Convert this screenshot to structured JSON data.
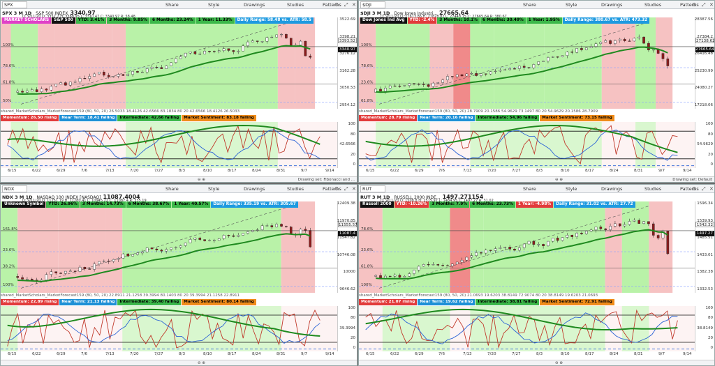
{
  "panels": [
    {
      "id": "spx",
      "symbol": "SPX",
      "title": "SPX 3 M 1D",
      "name": "S&P 500 INDEX",
      "last": "3340.97",
      "ohlc": "D: 9/11/20   O: 3352.7   H: 3368.95   L: 3310.47   C: 3340.97   R: 58.48",
      "badges": [
        {
          "text": "MARKET SCHOLARS",
          "cls": "b-mag"
        },
        {
          "text": "S&P 500",
          "cls": "b-name2"
        },
        {
          "text": "YTD: 3.41%",
          "cls": "b-green"
        },
        {
          "text": "3 Months: 9.85%",
          "cls": "b-green"
        },
        {
          "text": "6 Months: 23.24%",
          "cls": "b-green"
        },
        {
          "text": "1 Year: 11.33%",
          "cls": "b-green"
        },
        {
          "text": "Daily Range: 58.48 vs. ATR: 58.5",
          "cls": "b-range"
        }
      ],
      "axis": [
        "3522.69",
        "3398.21",
        "3276.12",
        "3162.28",
        "3050.53",
        "2954.12"
      ],
      "price_tag": "3340.97",
      "price_tag2": "3393.52",
      "fib": [
        "100%",
        "78.6%",
        "61.8%",
        "50%"
      ],
      "forecast": "shared_MarketScholars_MarketForecast159 (80, 50, 20)   26.5033   18.4126   42.6566   83.1834   80   20   42.6566   18.4126   26.5033",
      "osc": [
        {
          "text": "Momentum: 26.50  rising",
          "cls": "ob-red"
        },
        {
          "text": "Near Term: 18.41  falling",
          "cls": "ob-blue"
        },
        {
          "text": "Intermediate: 42.66  falling",
          "cls": "ob-green"
        },
        {
          "text": "Market Sentiment: 83.18  falling",
          "cls": "ob-orange"
        }
      ],
      "osc_axis": [
        "100",
        "80",
        "42.6566",
        "20",
        "0"
      ],
      "dates": [
        "6/15",
        "6/22",
        "6/29",
        "7/6",
        "7/13",
        "7/20",
        "7/27",
        "8/3",
        "8/10",
        "8/17",
        "8/24",
        "8/31",
        "9/7",
        "9/14"
      ],
      "bottom": "Drawing set: Fibonacci and ..."
    },
    {
      "id": "dji",
      "symbol": "$DJI",
      "title": "$DJI 3 M 1D",
      "name": "Dow Jones Industri...",
      "last": "27665.64",
      "ohlc": "D: 9/11/20   O: 27613.86   H: 27828.82   L: 27448.15   C: 27665.64   R: 380.67",
      "badges": [
        {
          "text": "Dow Jones Ind Avg",
          "cls": "b-name2"
        },
        {
          "text": "YTD: -2.4%",
          "cls": "b-red"
        },
        {
          "text": "3 Months: 10.1%",
          "cls": "b-green"
        },
        {
          "text": "6 Months: 30.49%",
          "cls": "b-green"
        },
        {
          "text": "1 Year: 1.95%",
          "cls": "b-green"
        },
        {
          "text": "Daily Range: 380.67 vs. ATR: 473.32",
          "cls": "b-range"
        }
      ],
      "axis": [
        "28387.56",
        "27384.2",
        "26416.48",
        "25230.99",
        "24080.27",
        "17218.06"
      ],
      "price_tag": "27665.64",
      "price_tag2": "27138.62",
      "fib": [
        "100%",
        "78.6%",
        "23.6%",
        "61.8%"
      ],
      "forecast": "shared_MarketScholars_MarketForecast159 (80, 50, 20)   28.7909   20.1586   54.9629   73.1497   80   20   54.9629   20.1586   28.7909",
      "osc": [
        {
          "text": "Momentum: 28.79  rising",
          "cls": "ob-red"
        },
        {
          "text": "Near Term: 20.16  falling",
          "cls": "ob-blue"
        },
        {
          "text": "Intermediate: 54.96  falling",
          "cls": "ob-green"
        },
        {
          "text": "Market Sentiment: 73.15  falling",
          "cls": "ob-orange"
        }
      ],
      "osc_axis": [
        "100",
        "80",
        "54.9629",
        "20",
        "0"
      ],
      "dates": [
        "6/15",
        "6/22",
        "6/29",
        "7/6",
        "7/13",
        "7/20",
        "7/27",
        "8/3",
        "8/10",
        "8/17",
        "8/24",
        "8/31",
        "9/7",
        "9/14"
      ],
      "bottom": "Drawing set: Default"
    },
    {
      "id": "ndx",
      "symbol": "NDX",
      "title": "NDX 3 M 1D",
      "name": "NASDAQ 100 INDEX [NASDAQ]",
      "last": "11087.4004",
      "ohlc": "D: 9/11/20   O: 11251.19   H: 11280.41   L: 10945.22   C: 11087.4   R: 335.19",
      "badges": [
        {
          "text": "Unknown Symbol",
          "cls": "b-name2"
        },
        {
          "text": "YTD: 26.96%",
          "cls": "b-green"
        },
        {
          "text": "3 Months: 14.73%",
          "cls": "b-green"
        },
        {
          "text": "6 Months: 38.67%",
          "cls": "b-green"
        },
        {
          "text": "1 Year: 40.57%",
          "cls": "b-green"
        },
        {
          "text": "Daily Range: 335.19 vs. ATR: 305.67",
          "cls": "b-range"
        }
      ],
      "axis": [
        "12409.38",
        "11970.85",
        "11547.82",
        "10746.08",
        "10000",
        "9646.62"
      ],
      "price_tag": "11087.4",
      "price_tag2": "11555.57",
      "fib": [
        "161.8%",
        "23.6%",
        "38.2%",
        "100%"
      ],
      "forecast": "shared_MarketScholars_MarketForecast159 (80, 50, 20)   22.8911   21.1258   39.3994   80.1403   80   20   39.3994   21.1258   22.8911",
      "osc": [
        {
          "text": "Momentum: 22.89  rising",
          "cls": "ob-red"
        },
        {
          "text": "Near Term: 21.13  falling",
          "cls": "ob-blue"
        },
        {
          "text": "Intermediate: 39.40  falling",
          "cls": "ob-green"
        },
        {
          "text": "Market Sentiment: 80.14  falling",
          "cls": "ob-orange"
        }
      ],
      "osc_axis": [
        "100",
        "80",
        "39.3994",
        "20",
        "0"
      ],
      "dates": [
        "6/15",
        "6/22",
        "6/29",
        "7/6",
        "7/13",
        "7/20",
        "7/27",
        "8/3",
        "8/10",
        "8/17",
        "8/24",
        "8/31",
        "9/7",
        "9/14"
      ],
      "bottom": ""
    },
    {
      "id": "rut",
      "symbol": "RUT",
      "title": "RUT 3 M 1D",
      "name": "RUSSELL 2000 INDE...",
      "last": "1497.271154",
      "ohlc": "D: 9/11/20   O: 1508.8   H: 1515.97   L: 1484.95   C: 1497.27   R: 31.02",
      "badges": [
        {
          "text": "Russell 2000",
          "cls": "b-name2"
        },
        {
          "text": "YTD: -10.26%",
          "cls": "b-red"
        },
        {
          "text": "3 Months: 7.9%",
          "cls": "b-green"
        },
        {
          "text": "6 Months: 23.73%",
          "cls": "b-green"
        },
        {
          "text": "1 Year: -4.98%",
          "cls": "b-red"
        },
        {
          "text": "Daily Range: 31.02 vs. ATR: 27.72",
          "cls": "b-range"
        }
      ],
      "axis": [
        "1596.34",
        "1539.93",
        "1485.51",
        "1433.01",
        "1382.38",
        "1332.53"
      ],
      "price_tag": "1497.27",
      "price_tag2": "1542.32",
      "fib": [
        "78.6%",
        "23.6%",
        "61.8%",
        "100%"
      ],
      "forecast": "shared_MarketScholars_MarketForecast159 (80, 50, 20)   21.0693   19.6203   38.8149   72.9074   80   20   38.8149   19.6203   21.0693",
      "osc": [
        {
          "text": "Momentum: 21.07  rising",
          "cls": "ob-red"
        },
        {
          "text": "Near Term: 19.62  falling",
          "cls": "ob-blue"
        },
        {
          "text": "Intermediate: 38.81  falling",
          "cls": "ob-green"
        },
        {
          "text": "Market Sentiment: 72.91  falling",
          "cls": "ob-orange"
        }
      ],
      "osc_axis": [
        "100",
        "80",
        "38.8149",
        "20",
        "0"
      ],
      "dates": [
        "6/15",
        "6/22",
        "6/29",
        "7/6",
        "7/13",
        "7/20",
        "7/27",
        "8/3",
        "8/10",
        "8/17",
        "8/24",
        "8/31",
        "9/7",
        "9/14"
      ],
      "bottom": ""
    }
  ],
  "toolbar": {
    "share": "Share",
    "style": "Style",
    "drawings": "Drawings",
    "studies": "Studies",
    "patterns": "Patterns"
  },
  "colors": {
    "green_zone": "#b9f2a8",
    "red_zone": "#f6c2c2",
    "ma_line": "#1f8a1f",
    "momentum": "#c0392b",
    "near_term": "#2a62d6",
    "intermediate": "#1f8a1f"
  }
}
